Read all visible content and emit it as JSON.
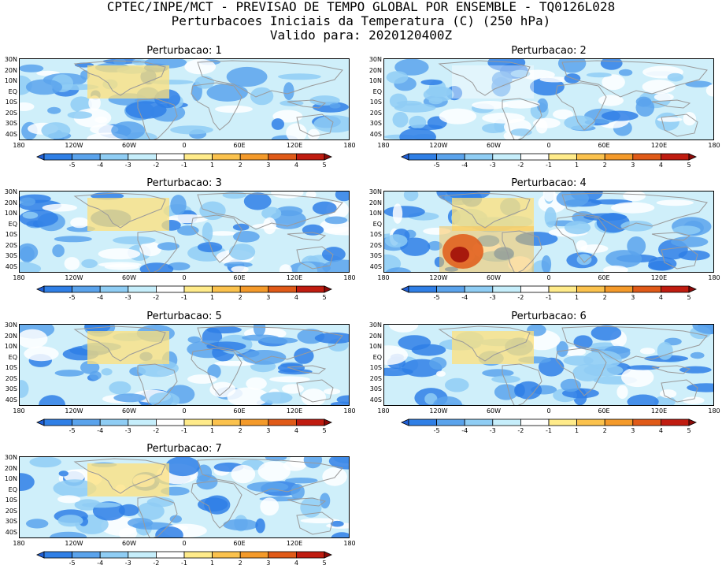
{
  "header": {
    "line1": "CPTEC/INPE/MCT - PREVISAO DE TEMPO GLOBAL POR ENSEMBLE - TQ0126L028",
    "line2": "Perturbacoes Iniciais da Temperatura (C) (250 hPa)",
    "line3": "Valido para: 2020120400Z"
  },
  "lat_labels": [
    "30N",
    "20N",
    "10N",
    "EQ",
    "10S",
    "20S",
    "30S",
    "40S"
  ],
  "lon_labels": [
    "180",
    "120W",
    "60W",
    "0",
    "60E",
    "120E",
    "180"
  ],
  "colorbar": {
    "labels": [
      "-5",
      "-4",
      "-3",
      "-2",
      "-1",
      "1",
      "2",
      "3",
      "4",
      "5"
    ],
    "colors": [
      "#1f5fd6",
      "#2f7fe6",
      "#5aa3ec",
      "#8fcdf4",
      "#c6eefb",
      "#ffffff",
      "#ffeb8a",
      "#fbc24d",
      "#f49a2a",
      "#e05a18",
      "#c01c10",
      "#8c0a08"
    ]
  },
  "panels": [
    {
      "title": "Perturbacao: 1"
    },
    {
      "title": "Perturbacao: 2"
    },
    {
      "title": "Perturbacao: 3"
    },
    {
      "title": "Perturbacao: 4"
    },
    {
      "title": "Perturbacao: 5"
    },
    {
      "title": "Perturbacao: 6"
    },
    {
      "title": "Perturbacao: 7"
    }
  ]
}
